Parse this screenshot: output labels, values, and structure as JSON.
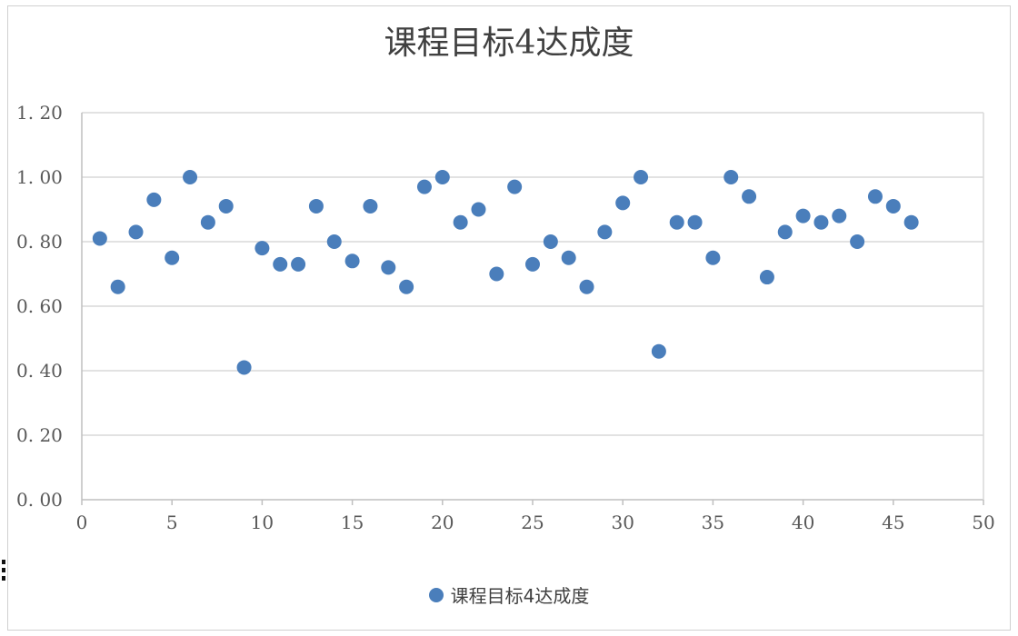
{
  "chart_data": {
    "type": "scatter",
    "title": "课程目标4达成度",
    "xlabel": "",
    "ylabel": "",
    "xlim": [
      0,
      50
    ],
    "ylim": [
      0,
      1.2
    ],
    "x_ticks": [
      "0",
      "5",
      "10",
      "15",
      "20",
      "25",
      "30",
      "35",
      "40",
      "45",
      "50"
    ],
    "y_ticks": [
      "0. 00",
      "0. 20",
      "0. 40",
      "0. 60",
      "0. 80",
      "1. 00",
      "1. 20"
    ],
    "grid": "horizontal",
    "legend_position": "bottom",
    "series": [
      {
        "name": "课程目标4达成度",
        "color": "#4a7ebb",
        "x": [
          1,
          2,
          3,
          4,
          5,
          6,
          7,
          8,
          9,
          10,
          11,
          12,
          13,
          14,
          15,
          16,
          17,
          18,
          19,
          20,
          21,
          22,
          23,
          24,
          25,
          26,
          27,
          28,
          29,
          30,
          31,
          32,
          33,
          34,
          35,
          36,
          37,
          38,
          39,
          40,
          41,
          42,
          43,
          44,
          45,
          46
        ],
        "y": [
          0.81,
          0.66,
          0.83,
          0.93,
          0.75,
          1.0,
          0.86,
          0.91,
          0.41,
          0.78,
          0.73,
          0.73,
          0.91,
          0.8,
          0.74,
          0.91,
          0.72,
          0.66,
          0.97,
          1.0,
          0.86,
          0.9,
          0.7,
          0.97,
          0.73,
          0.8,
          0.75,
          0.66,
          0.83,
          0.92,
          1.0,
          0.46,
          0.86,
          0.86,
          0.75,
          1.0,
          0.94,
          0.69,
          0.83,
          0.88,
          0.86,
          0.88,
          0.8,
          0.94,
          0.91,
          0.86
        ]
      }
    ]
  }
}
